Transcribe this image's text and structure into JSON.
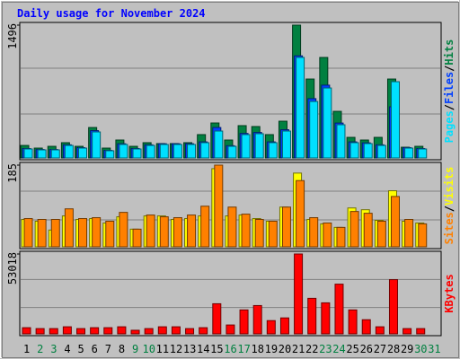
{
  "chart_data": [
    {
      "type": "bar",
      "title": "Daily usage for November 2024",
      "ylim": [
        0,
        1496
      ],
      "yticks": [
        1496
      ],
      "legend_separator": "/",
      "series": [
        {
          "name": "Hits",
          "color": "#008040",
          "values": [
            141,
            111,
            131,
            172,
            131,
            343,
            111,
            202,
            131,
            172,
            162,
            162,
            172,
            263,
            394,
            202,
            364,
            354,
            263,
            414,
            1496,
            889,
            1132,
            525,
            232,
            202,
            232,
            889,
            121,
            131,
            0
          ]
        },
        {
          "name": "Files",
          "color": "#0040ff",
          "values": [
            106,
            95,
            95,
            148,
            116,
            308,
            85,
            160,
            106,
            148,
            160,
            160,
            160,
            181,
            343,
            138,
            276,
            287,
            181,
            318,
            1150,
            668,
            820,
            393,
            181,
            170,
            148,
            576,
            116,
            106,
            0
          ]
        },
        {
          "name": "Pages",
          "color": "#00e0ff",
          "values": [
            101,
            91,
            91,
            141,
            111,
            293,
            81,
            152,
            101,
            141,
            152,
            152,
            152,
            172,
            303,
            131,
            263,
            273,
            172,
            303,
            1132,
            636,
            788,
            374,
            172,
            162,
            141,
            859,
            111,
            101,
            0
          ]
        }
      ]
    },
    {
      "type": "bar",
      "ylim": [
        0,
        185
      ],
      "yticks": [
        185
      ],
      "legend_separator": "/",
      "series": [
        {
          "name": "Visits",
          "color": "#ffff00",
          "values": [
            62,
            58,
            38,
            70,
            62,
            64,
            54,
            68,
            40,
            70,
            70,
            62,
            64,
            70,
            177,
            70,
            72,
            64,
            58,
            90,
            167,
            62,
            52,
            44,
            88,
            84,
            60,
            127,
            58,
            54,
            0
          ]
        },
        {
          "name": "Sites",
          "color": "#ff8000",
          "values": [
            64,
            62,
            62,
            86,
            64,
            66,
            58,
            78,
            40,
            72,
            68,
            66,
            72,
            92,
            185,
            90,
            74,
            62,
            58,
            90,
            150,
            66,
            54,
            44,
            80,
            76,
            58,
            114,
            62,
            52,
            0
          ]
        }
      ]
    },
    {
      "type": "bar",
      "ylim": [
        0,
        53018
      ],
      "yticks": [
        53018
      ],
      "series": [
        {
          "name": "KBytes",
          "color": "#ff0000",
          "values": [
            4100,
            3500,
            3500,
            4700,
            3500,
            4100,
            4100,
            4700,
            2400,
            3500,
            4700,
            4700,
            3500,
            4100,
            20000,
            5900,
            15900,
            18800,
            8800,
            10600,
            53018,
            23600,
            20600,
            33000,
            15900,
            9400,
            4700,
            36000,
            3500,
            3500,
            0
          ]
        }
      ],
      "categories": [
        "1",
        "2",
        "3",
        "4",
        "5",
        "6",
        "7",
        "8",
        "9",
        "10",
        "11",
        "12",
        "13",
        "14",
        "15",
        "16",
        "17",
        "18",
        "19",
        "20",
        "21",
        "22",
        "23",
        "24",
        "25",
        "26",
        "27",
        "28",
        "29",
        "30",
        "31"
      ],
      "category_colors": [
        "#000000",
        "#008040",
        "#008040",
        "#000000",
        "#000000",
        "#000000",
        "#000000",
        "#000000",
        "#008040",
        "#008040",
        "#000000",
        "#000000",
        "#000000",
        "#000000",
        "#000000",
        "#008040",
        "#008040",
        "#000000",
        "#000000",
        "#000000",
        "#000000",
        "#000000",
        "#008040",
        "#008040",
        "#000000",
        "#000000",
        "#000000",
        "#000000",
        "#000000",
        "#008040",
        "#008040"
      ]
    }
  ]
}
